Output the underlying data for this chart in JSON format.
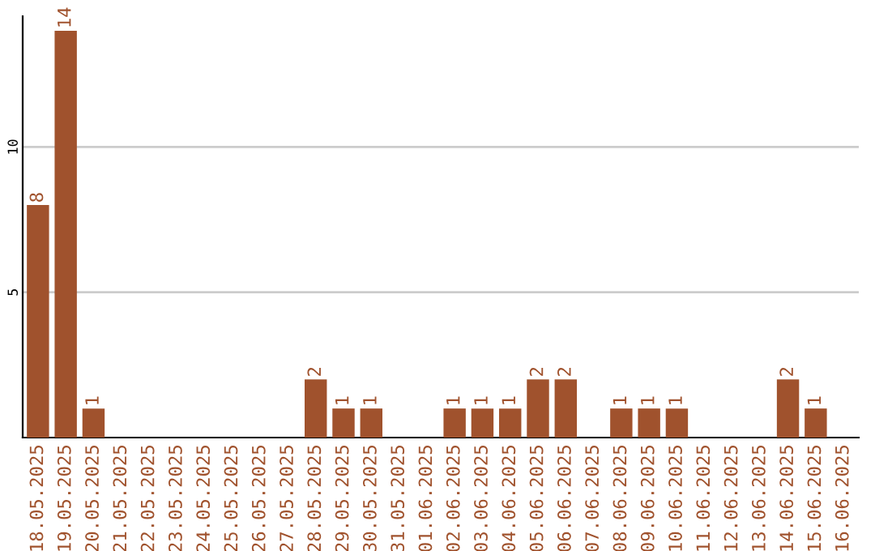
{
  "chart_data": {
    "type": "bar",
    "categories": [
      "18.05.2025",
      "19.05.2025",
      "20.05.2025",
      "21.05.2025",
      "22.05.2025",
      "23.05.2025",
      "24.05.2025",
      "25.05.2025",
      "26.05.2025",
      "27.05.2025",
      "28.05.2025",
      "29.05.2025",
      "30.05.2025",
      "31.05.2025",
      "01.06.2025",
      "02.06.2025",
      "03.06.2025",
      "04.06.2025",
      "05.06.2025",
      "06.06.2025",
      "07.06.2025",
      "08.06.2025",
      "09.06.2025",
      "10.06.2025",
      "11.06.2025",
      "12.06.2025",
      "13.06.2025",
      "14.06.2025",
      "15.06.2025",
      "16.06.2025"
    ],
    "values": [
      8,
      14,
      1,
      0,
      0,
      0,
      0,
      0,
      0,
      0,
      2,
      1,
      1,
      0,
      0,
      1,
      1,
      1,
      2,
      2,
      0,
      1,
      1,
      1,
      0,
      0,
      0,
      2,
      1,
      0
    ],
    "value_labels": [
      "8",
      "14",
      "1",
      null,
      null,
      null,
      null,
      null,
      null,
      null,
      "2",
      "1",
      "1",
      null,
      null,
      "1",
      "1",
      "1",
      "2",
      "2",
      null,
      "1",
      "1",
      "1",
      null,
      null,
      null,
      "2",
      "1",
      null
    ],
    "color": "#a0522d",
    "ylim": [
      0,
      14.5
    ],
    "yticks": [
      5,
      10
    ],
    "grid": "y",
    "legend": false
  }
}
